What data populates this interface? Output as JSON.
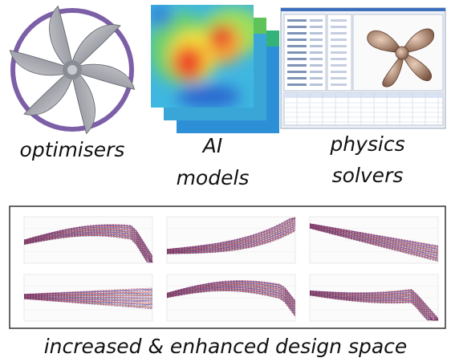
{
  "items": [
    {
      "lines": [
        "optimisers"
      ]
    },
    {
      "lines": [
        "AI",
        "models"
      ]
    },
    {
      "lines": [
        "physics",
        "solvers"
      ]
    }
  ],
  "caption": "increased & enhanced design space"
}
